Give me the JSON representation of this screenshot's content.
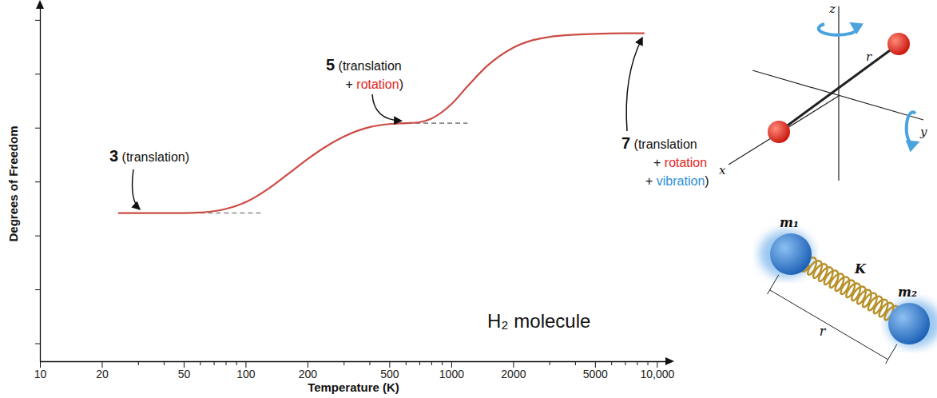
{
  "chart_data": {
    "type": "line",
    "x_label": "Temperature (K)",
    "y_label": "Degrees of Freedom",
    "log": "x",
    "xlim": [
      10,
      11200
    ],
    "xticks": [
      10,
      20,
      50,
      100,
      200,
      500,
      1000,
      2000,
      5000,
      {
        "value": 10000,
        "label": "10,000"
      }
    ],
    "xminorticks": [
      30,
      40,
      60,
      70,
      80,
      90,
      300,
      400,
      600,
      700,
      800,
      900,
      3000,
      4000,
      6000,
      7000,
      8000,
      9000
    ],
    "ylim": [
      -0.3,
      7.6
    ],
    "yticks": [
      0.1,
      1.3,
      2.5,
      3.7,
      4.9,
      6.1,
      7.3
    ],
    "tick_labels": "x",
    "color": "#cc4b45",
    "x": [
      24,
      30,
      40,
      50,
      60,
      70,
      80,
      100,
      130,
      160,
      200,
      250,
      300,
      400,
      500,
      600,
      700,
      800,
      1000,
      1200,
      1500,
      2000,
      2500,
      3000,
      4000,
      5000,
      7000,
      8700
    ],
    "values": [
      3,
      3,
      3,
      3,
      3.01,
      3.04,
      3.09,
      3.24,
      3.55,
      3.86,
      4.2,
      4.5,
      4.7,
      4.91,
      4.98,
      5,
      5.02,
      5.1,
      5.42,
      5.82,
      6.28,
      6.68,
      6.85,
      6.92,
      6.97,
      6.99,
      7,
      7
    ],
    "reference_lines": [
      {
        "y": 3,
        "x": [
          60,
          120
        ],
        "line_style": "dashed",
        "color": "#8a8a8a"
      },
      {
        "y": 5,
        "x": [
          560,
          1200
        ],
        "line_style": "dashed",
        "color": "#8a8a8a"
      }
    ],
    "annotations": [
      {
        "x": 31,
        "y": 3,
        "lines": [
          [
            {
              "text": "3"
            },
            {
              "text": " (translation)"
            }
          ]
        ]
      },
      {
        "x": 590,
        "y": 5,
        "lines": [
          [
            {
              "text": "5"
            },
            {
              "text": " (translation"
            }
          ],
          [
            {
              "text": "+ "
            },
            {
              "text": "rotation",
              "color": "#e3261d"
            },
            {
              "text": ")"
            }
          ]
        ]
      },
      {
        "x": 8700,
        "y": 7,
        "lines": [
          [
            {
              "text": "7"
            },
            {
              "text": " (translation"
            }
          ],
          [
            {
              "text": "+ "
            },
            {
              "text": "rotation",
              "color": "#e3261d"
            }
          ],
          [
            {
              "text": "+ "
            },
            {
              "text": "vibration",
              "color": "#2b8fd8"
            },
            {
              "text": ")"
            }
          ]
        ]
      }
    ],
    "molecule_label": "H₂ molecule",
    "illustrations": {
      "rotation": {
        "axes": [
          "z",
          "x",
          "y"
        ],
        "bond": "r"
      },
      "vibration": {
        "masses": [
          "m₁",
          "m₂"
        ],
        "spring": "K",
        "bond": "r"
      }
    }
  }
}
